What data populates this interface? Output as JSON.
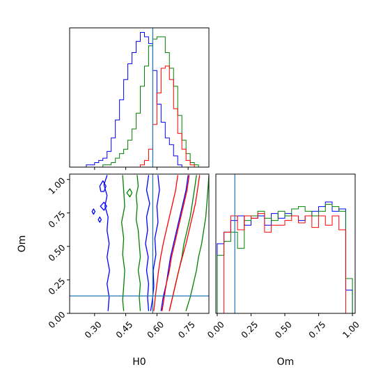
{
  "chart_data": [
    {
      "panel": "H0 marginal histogram",
      "type": "step-histogram",
      "xlim": [
        0.18,
        0.85
      ],
      "ylim": [
        0,
        62
      ],
      "truth_line": 0.58,
      "bin_edges": [
        0.18,
        0.2,
        0.22,
        0.24,
        0.26,
        0.28,
        0.3,
        0.32,
        0.34,
        0.36,
        0.38,
        0.4,
        0.42,
        0.44,
        0.46,
        0.48,
        0.5,
        0.52,
        0.54,
        0.56,
        0.58,
        0.6,
        0.62,
        0.64,
        0.66,
        0.68,
        0.7,
        0.72,
        0.74,
        0.76,
        0.78,
        0.8,
        0.82,
        0.84
      ],
      "series": [
        {
          "color": "#0000ff",
          "counts": [
            0,
            0,
            0,
            0,
            1,
            1,
            2,
            3,
            4,
            7,
            13,
            21,
            30,
            39,
            46,
            51,
            56,
            60,
            58,
            55,
            43,
            28,
            20,
            13,
            10,
            5,
            1,
            0,
            0,
            0,
            0,
            0,
            0
          ]
        },
        {
          "color": "#008000",
          "counts": [
            0,
            0,
            0,
            0,
            0,
            0,
            0,
            0,
            1,
            1,
            2,
            4,
            6,
            8,
            12,
            17,
            24,
            36,
            45,
            54,
            57,
            58,
            58,
            51,
            44,
            36,
            23,
            12,
            6,
            2,
            1,
            0,
            0
          ]
        },
        {
          "color": "#ff0000",
          "counts": [
            0,
            0,
            0,
            0,
            0,
            0,
            0,
            0,
            0,
            0,
            0,
            0,
            0,
            0,
            0,
            0,
            0,
            1,
            3,
            8,
            19,
            33,
            44,
            45,
            39,
            26,
            15,
            8,
            3,
            1,
            0,
            0,
            0
          ]
        }
      ]
    },
    {
      "panel": "Om marginal histogram",
      "type": "step-histogram",
      "xlim": [
        -0.01,
        1.02
      ],
      "ylim": [
        0,
        60
      ],
      "truth_line": 0.13,
      "bin_edges": [
        0.0,
        0.05,
        0.1,
        0.15,
        0.2,
        0.25,
        0.3,
        0.35,
        0.4,
        0.45,
        0.5,
        0.55,
        0.6,
        0.65,
        0.7,
        0.75,
        0.8,
        0.85,
        0.9,
        0.95,
        1.0
      ],
      "series": [
        {
          "color": "#0000ff",
          "counts": [
            30,
            35,
            40,
            42,
            38,
            41,
            42,
            38,
            43,
            41,
            43,
            42,
            40,
            42,
            44,
            46,
            48,
            44,
            45,
            10
          ]
        },
        {
          "color": "#008000",
          "counts": [
            25,
            31,
            35,
            28,
            40,
            42,
            44,
            41,
            40,
            44,
            42,
            45,
            46,
            44,
            42,
            44,
            47,
            46,
            44,
            15
          ]
        },
        {
          "color": "#ff0000",
          "counts": [
            0,
            35,
            42,
            36,
            42,
            41,
            43,
            35,
            38,
            38,
            40,
            42,
            39,
            42,
            37,
            42,
            38,
            42,
            36,
            0
          ]
        }
      ]
    },
    {
      "panel": "H0 vs Om joint contours",
      "type": "contour",
      "xlabel": "H0",
      "ylabel": "Om",
      "xlim": [
        0.18,
        0.85
      ],
      "ylim": [
        0.0,
        1.04
      ],
      "xticks": [
        "0.30",
        "0.45",
        "0.60",
        "0.75"
      ],
      "xtick_values": [
        0.3,
        0.45,
        0.6,
        0.75
      ],
      "yticks": [
        "0.00",
        "0.25",
        "0.50",
        "0.75",
        "1.00"
      ],
      "ytick_values": [
        0.0,
        0.25,
        0.5,
        0.75,
        1.0
      ],
      "truth": {
        "H0": 0.58,
        "Om": 0.13
      },
      "series": [
        {
          "color": "#0000ff",
          "contours": [
            [
              [
                0.365,
                0.02
              ],
              [
                0.37,
                0.12
              ],
              [
                0.36,
                0.22
              ],
              [
                0.372,
                0.32
              ],
              [
                0.36,
                0.42
              ],
              [
                0.37,
                0.52
              ],
              [
                0.36,
                0.62
              ],
              [
                0.365,
                0.72
              ],
              [
                0.35,
                0.8
              ],
              [
                0.36,
                0.88
              ],
              [
                0.345,
                0.96
              ],
              [
                0.36,
                1.03
              ]
            ],
            [
              [
                0.56,
                0.02
              ],
              [
                0.555,
                0.12
              ],
              [
                0.56,
                0.22
              ],
              [
                0.55,
                0.32
              ],
              [
                0.558,
                0.42
              ],
              [
                0.545,
                0.52
              ],
              [
                0.555,
                0.62
              ],
              [
                0.55,
                0.72
              ],
              [
                0.565,
                0.82
              ],
              [
                0.55,
                0.92
              ],
              [
                0.56,
                1.03
              ]
            ],
            [
              [
                0.62,
                0.02
              ],
              [
                0.63,
                0.12
              ],
              [
                0.645,
                0.22
              ],
              [
                0.655,
                0.32
              ],
              [
                0.665,
                0.42
              ],
              [
                0.68,
                0.52
              ],
              [
                0.695,
                0.62
              ],
              [
                0.71,
                0.72
              ],
              [
                0.725,
                0.82
              ],
              [
                0.74,
                0.92
              ],
              [
                0.75,
                1.03
              ]
            ],
            [
              [
                0.57,
                0.02
              ],
              [
                0.578,
                0.1
              ],
              [
                0.585,
                0.2
              ],
              [
                0.582,
                0.32
              ],
              [
                0.595,
                0.44
              ],
              [
                0.59,
                0.56
              ],
              [
                0.605,
                0.68
              ],
              [
                0.6,
                0.8
              ],
              [
                0.612,
                0.92
              ],
              [
                0.605,
                1.03
              ]
            ],
            [
              [
                0.288,
                0.76
              ],
              [
                0.295,
                0.74
              ],
              [
                0.302,
                0.76
              ],
              [
                0.295,
                0.78
              ],
              [
                0.288,
                0.76
              ]
            ],
            [
              [
                0.318,
                0.7
              ],
              [
                0.325,
                0.68
              ],
              [
                0.332,
                0.7
              ],
              [
                0.325,
                0.72
              ],
              [
                0.318,
                0.7
              ]
            ],
            [
              [
                0.325,
                0.95
              ],
              [
                0.34,
                0.99
              ],
              [
                0.355,
                0.95
              ],
              [
                0.345,
                0.91
              ],
              [
                0.33,
                0.91
              ],
              [
                0.325,
                0.95
              ]
            ],
            [
              [
                0.328,
                0.8
              ],
              [
                0.345,
                0.83
              ],
              [
                0.358,
                0.8
              ],
              [
                0.345,
                0.77
              ],
              [
                0.328,
                0.8
              ]
            ]
          ]
        },
        {
          "color": "#008000",
          "contours": [
            [
              [
                0.44,
                0.02
              ],
              [
                0.435,
                0.1
              ],
              [
                0.44,
                0.2
              ],
              [
                0.445,
                0.32
              ],
              [
                0.435,
                0.44
              ],
              [
                0.44,
                0.56
              ],
              [
                0.43,
                0.68
              ],
              [
                0.445,
                0.8
              ],
              [
                0.44,
                0.92
              ],
              [
                0.435,
                1.03
              ]
            ],
            [
              [
                0.52,
                0.02
              ],
              [
                0.515,
                0.12
              ],
              [
                0.52,
                0.22
              ],
              [
                0.51,
                0.32
              ],
              [
                0.52,
                0.42
              ],
              [
                0.515,
                0.52
              ],
              [
                0.51,
                0.62
              ],
              [
                0.5,
                0.7
              ],
              [
                0.505,
                0.8
              ],
              [
                0.5,
                0.88
              ],
              [
                0.51,
                0.95
              ],
              [
                0.505,
                1.03
              ]
            ],
            [
              [
                0.66,
                0.02
              ],
              [
                0.675,
                0.12
              ],
              [
                0.69,
                0.22
              ],
              [
                0.705,
                0.32
              ],
              [
                0.72,
                0.42
              ],
              [
                0.73,
                0.52
              ],
              [
                0.745,
                0.62
              ],
              [
                0.76,
                0.72
              ],
              [
                0.77,
                0.82
              ],
              [
                0.78,
                0.92
              ],
              [
                0.79,
                1.03
              ]
            ],
            [
              [
                0.74,
                0.02
              ],
              [
                0.76,
                0.12
              ],
              [
                0.775,
                0.22
              ],
              [
                0.79,
                0.32
              ],
              [
                0.8,
                0.42
              ],
              [
                0.815,
                0.52
              ],
              [
                0.825,
                0.62
              ],
              [
                0.835,
                0.72
              ],
              [
                0.84,
                0.82
              ],
              [
                0.845,
                0.92
              ],
              [
                0.85,
                1.03
              ]
            ],
            [
              [
                0.455,
                0.9
              ],
              [
                0.47,
                0.93
              ],
              [
                0.48,
                0.9
              ],
              [
                0.47,
                0.87
              ],
              [
                0.455,
                0.9
              ]
            ]
          ]
        },
        {
          "color": "#ff0000",
          "contours": [
            [
              [
                0.585,
                0.02
              ],
              [
                0.592,
                0.12
              ],
              [
                0.6,
                0.22
              ],
              [
                0.608,
                0.32
              ],
              [
                0.618,
                0.42
              ],
              [
                0.63,
                0.52
              ],
              [
                0.645,
                0.62
              ],
              [
                0.66,
                0.72
              ],
              [
                0.675,
                0.82
              ],
              [
                0.69,
                0.92
              ],
              [
                0.7,
                1.03
              ]
            ],
            [
              [
                0.66,
                0.02
              ],
              [
                0.675,
                0.12
              ],
              [
                0.69,
                0.22
              ],
              [
                0.705,
                0.32
              ],
              [
                0.722,
                0.42
              ],
              [
                0.74,
                0.52
              ],
              [
                0.755,
                0.62
              ],
              [
                0.77,
                0.72
              ],
              [
                0.785,
                0.82
              ],
              [
                0.795,
                0.92
              ],
              [
                0.805,
                1.03
              ]
            ],
            [
              [
                0.625,
                0.02
              ],
              [
                0.635,
                0.12
              ],
              [
                0.645,
                0.22
              ],
              [
                0.66,
                0.32
              ],
              [
                0.67,
                0.42
              ],
              [
                0.685,
                0.52
              ],
              [
                0.7,
                0.62
              ],
              [
                0.715,
                0.72
              ],
              [
                0.73,
                0.82
              ],
              [
                0.745,
                0.92
              ],
              [
                0.755,
                1.03
              ]
            ]
          ]
        }
      ]
    },
    {
      "panel": "Om axis of Om marginal",
      "xlabel": "Om",
      "xticks": [
        "0.00",
        "0.25",
        "0.50",
        "0.75",
        "1.00"
      ],
      "xtick_values": [
        0.0,
        0.25,
        0.5,
        0.75,
        1.0
      ]
    }
  ],
  "axes_color": "#000000",
  "truth_line_color": "#1f77b4"
}
